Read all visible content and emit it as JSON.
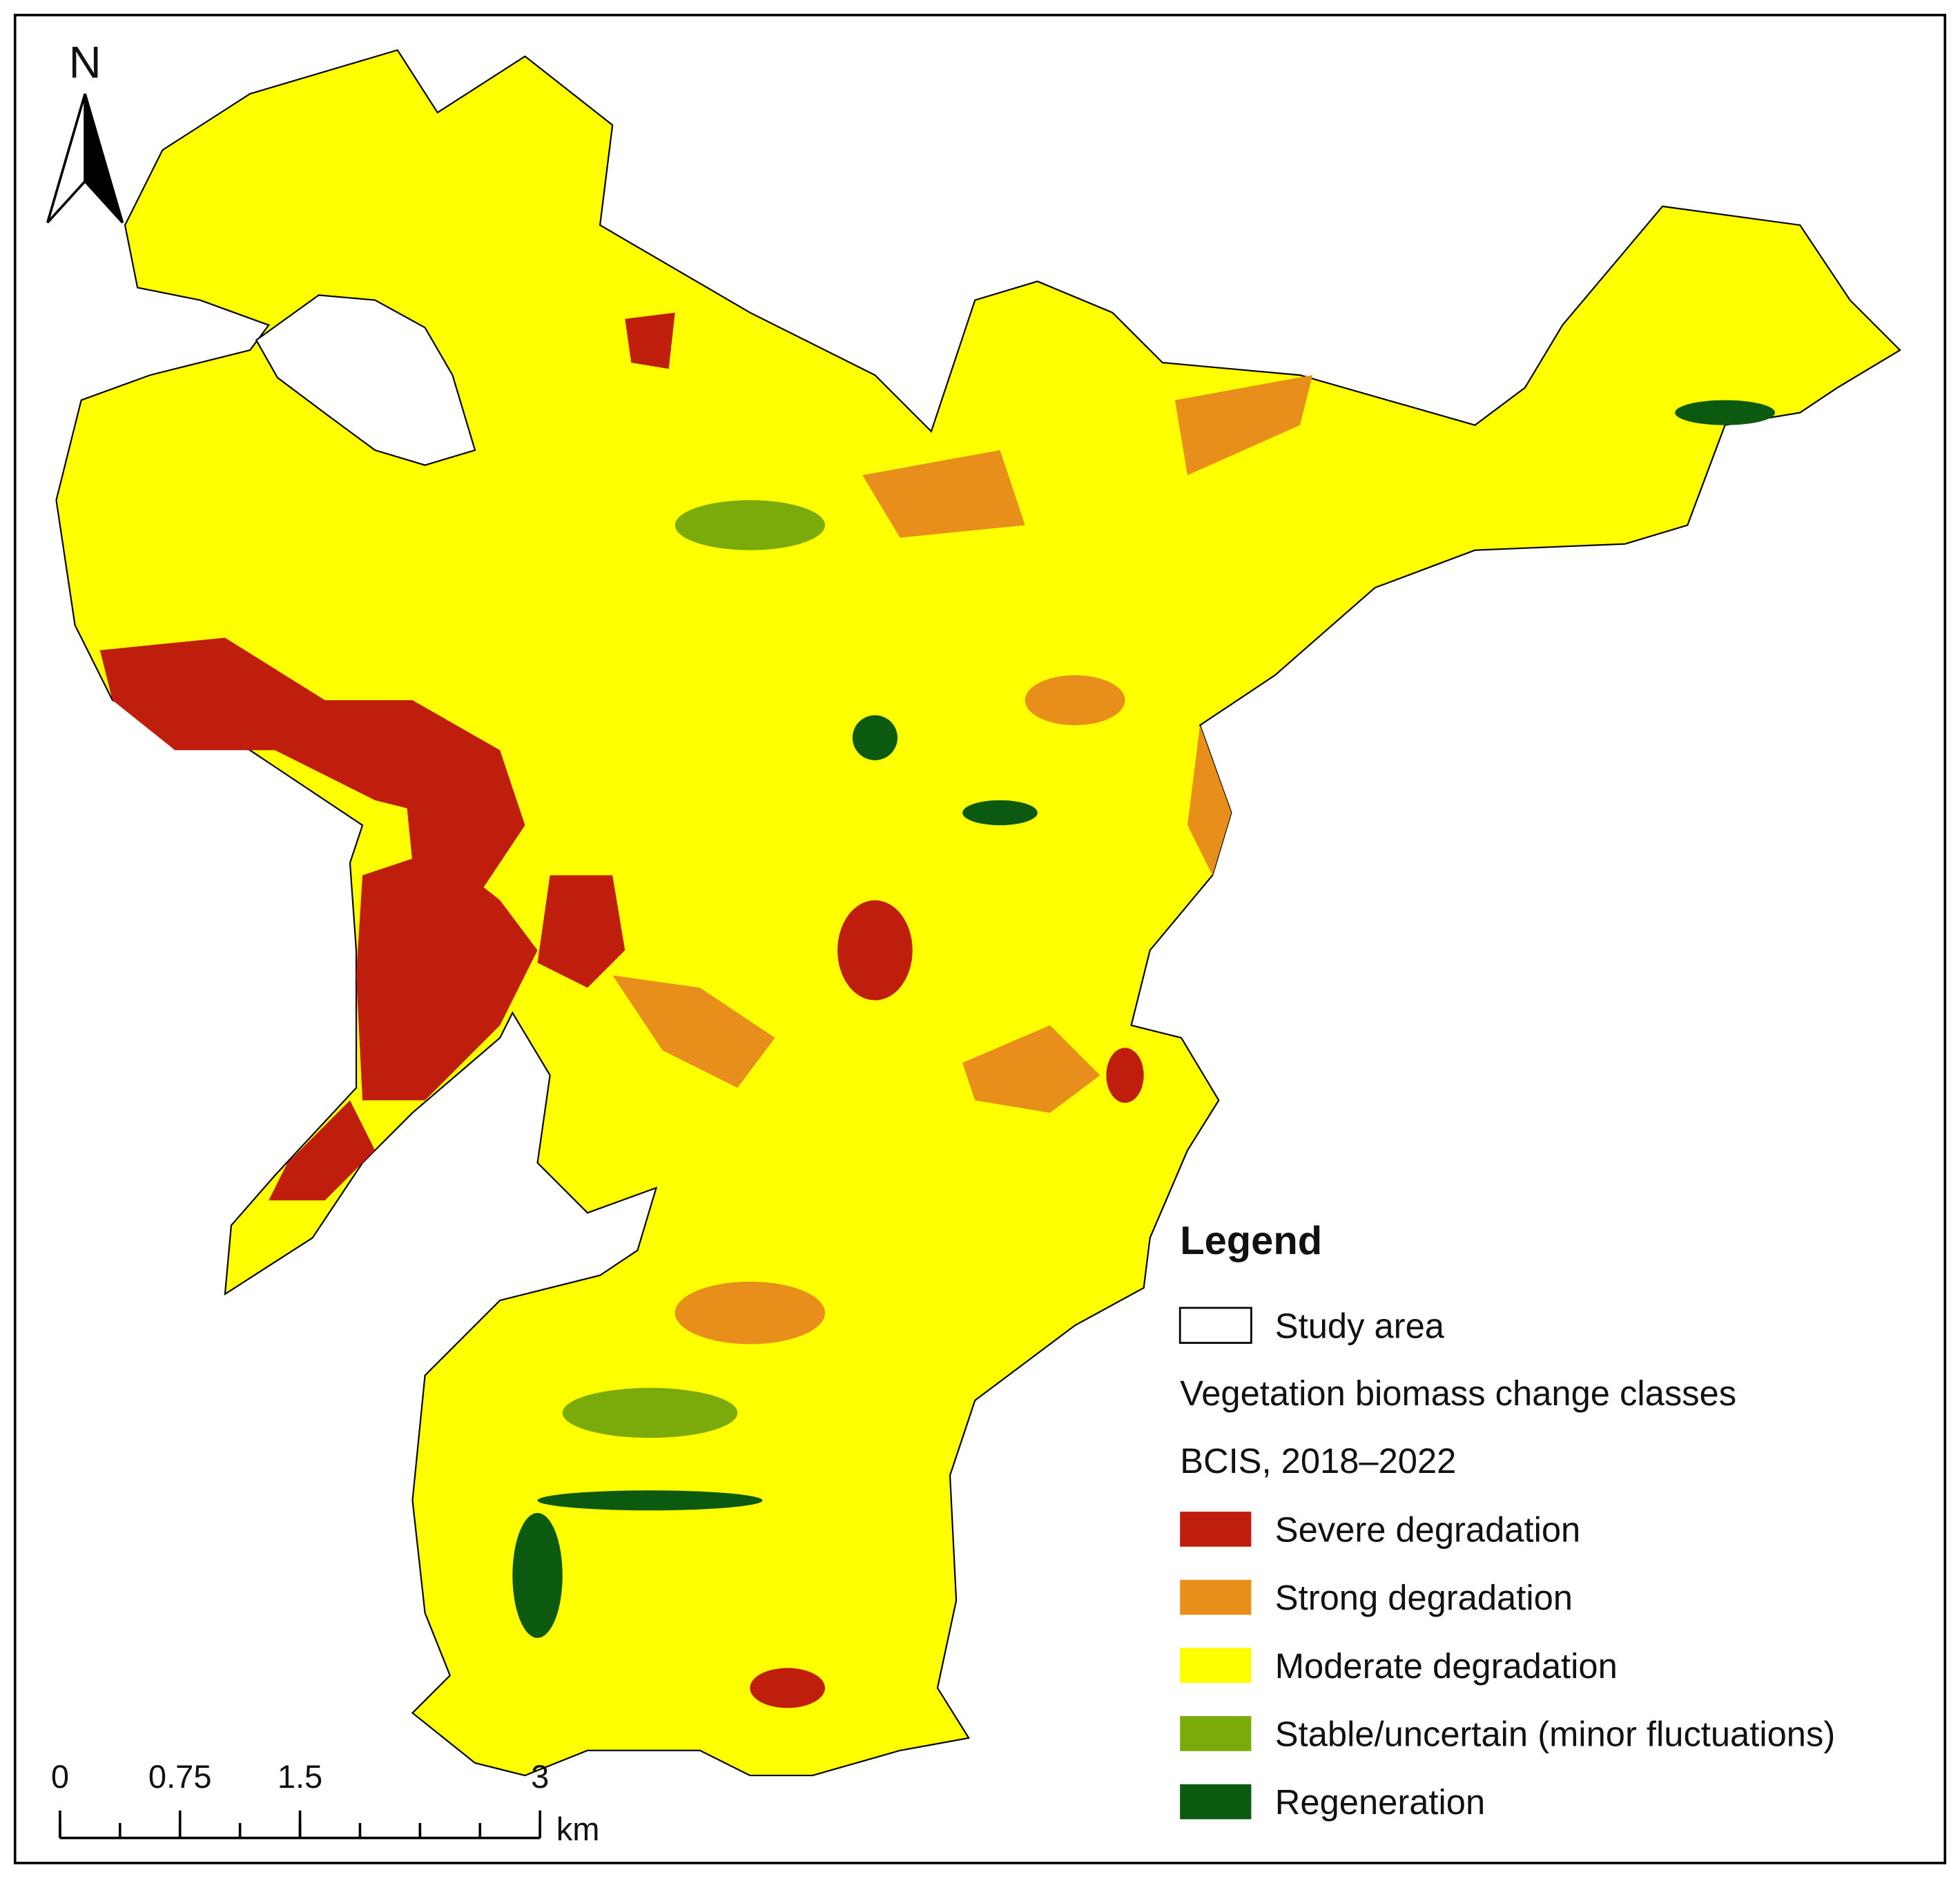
{
  "north_arrow": {
    "label": "N"
  },
  "scale_bar": {
    "ticks": [
      0,
      0.75,
      1.5,
      3
    ],
    "unit": "km"
  },
  "legend": {
    "title": "Legend",
    "boundary": {
      "label": "Study area"
    },
    "subtitle_lines": [
      "Vegetation biomass change classes",
      "BCIS, 2018–2022"
    ],
    "classes": [
      {
        "label": "Severe degradation",
        "color": "#bf1e0c"
      },
      {
        "label": "Strong degradation",
        "color": "#e88e1a"
      },
      {
        "label": "Moderate degradation",
        "color": "#ffff00"
      },
      {
        "label": "Stable/uncertain (minor fluctuations)",
        "color": "#7aab0a"
      },
      {
        "label": "Regeneration",
        "color": "#0b5a10"
      }
    ]
  }
}
